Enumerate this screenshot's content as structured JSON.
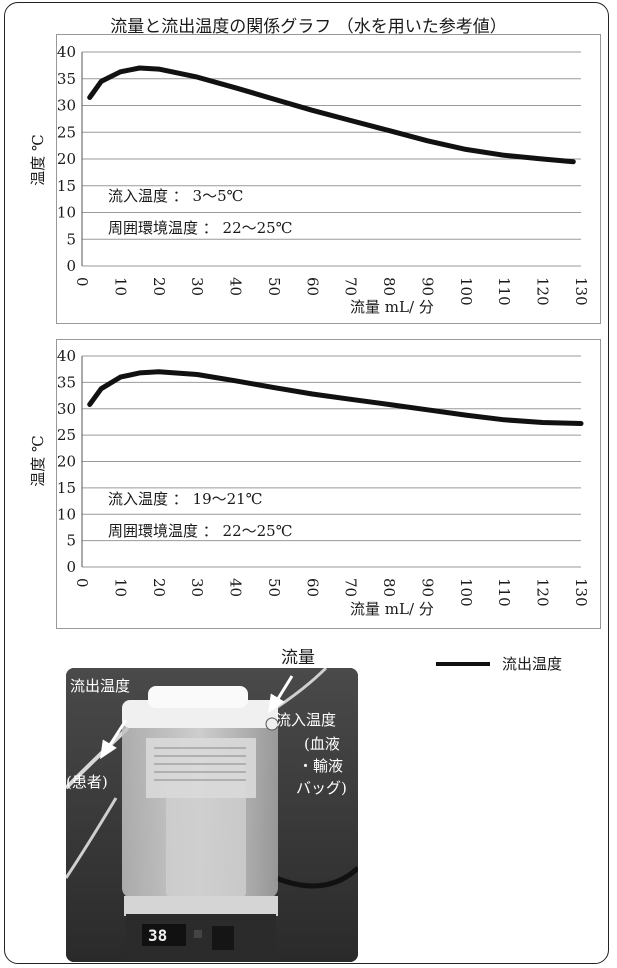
{
  "page": {
    "title": "流量と流出温度の関係グラフ （水を用いた参考値）"
  },
  "chart_data": [
    {
      "type": "line",
      "xlabel": "流量 mL/ 分",
      "ylabel": "温度 ℃",
      "xlim": [
        0,
        130
      ],
      "ylim": [
        0,
        40
      ],
      "x_ticks": [
        "0",
        "10",
        "20",
        "30",
        "40",
        "50",
        "60",
        "70",
        "80",
        "90",
        "100",
        "110",
        "120",
        "130"
      ],
      "y_ticks": [
        "0",
        "5",
        "10",
        "15",
        "20",
        "25",
        "30",
        "35",
        "40"
      ],
      "grid": true,
      "series": [
        {
          "name": "流出温度",
          "color": "#111111",
          "x": [
            2,
            5,
            10,
            15,
            20,
            30,
            40,
            50,
            60,
            70,
            80,
            90,
            100,
            110,
            120,
            128
          ],
          "y": [
            31.5,
            34.5,
            36.3,
            37.0,
            36.8,
            35.3,
            33.3,
            31.2,
            29.1,
            27.2,
            25.3,
            23.4,
            21.8,
            20.7,
            20.0,
            19.5
          ]
        }
      ],
      "annotations": [
        "流入温度 ： 3〜5℃",
        "周囲環境温度 ： 22〜25℃"
      ]
    },
    {
      "type": "line",
      "xlabel": "流量 mL/ 分",
      "ylabel": "温度 ℃",
      "xlim": [
        0,
        130
      ],
      "ylim": [
        0,
        40
      ],
      "x_ticks": [
        "0",
        "10",
        "20",
        "30",
        "40",
        "50",
        "60",
        "70",
        "80",
        "90",
        "100",
        "110",
        "120",
        "130"
      ],
      "y_ticks": [
        "0",
        "5",
        "10",
        "15",
        "20",
        "25",
        "30",
        "35",
        "40"
      ],
      "grid": true,
      "series": [
        {
          "name": "流出温度",
          "color": "#111111",
          "x": [
            2,
            5,
            10,
            15,
            20,
            30,
            40,
            50,
            60,
            70,
            80,
            90,
            100,
            110,
            120,
            130
          ],
          "y": [
            30.8,
            33.8,
            36.0,
            36.8,
            37.0,
            36.5,
            35.3,
            34.0,
            32.8,
            31.8,
            30.8,
            29.8,
            28.8,
            27.9,
            27.4,
            27.2
          ]
        }
      ],
      "annotations": [
        "流入温度 ： 19〜21℃",
        "周囲環境温度 ： 22〜25℃"
      ]
    }
  ],
  "legend": {
    "label": "流出温度",
    "placement": "right of photo"
  },
  "photo": {
    "caption": "流量",
    "label_outflow": "流出温度",
    "label_patient": "(患者)",
    "label_inflow": "流入温度",
    "label_bag_1": "(血液",
    "label_bag_2": "・輸液",
    "label_bag_3": "バッグ)",
    "display_value": "38"
  }
}
